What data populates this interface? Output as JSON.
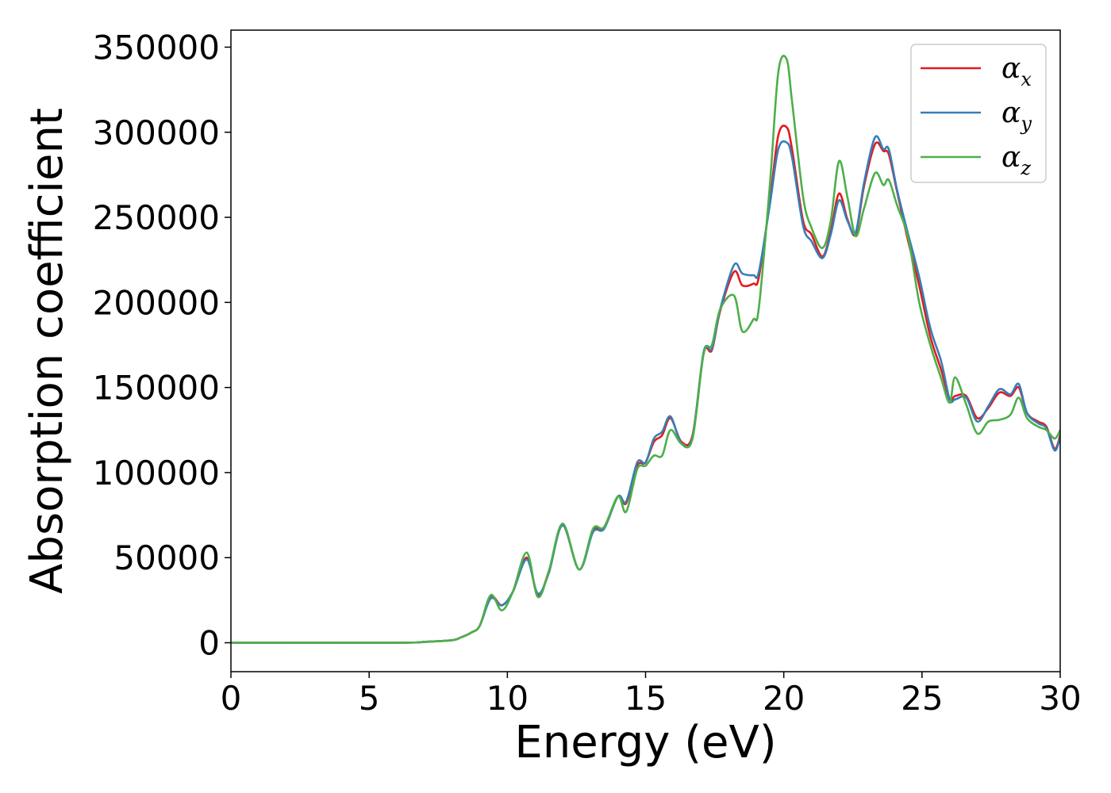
{
  "chart_data": {
    "type": "line",
    "title": "",
    "xlabel": "Energy (eV)",
    "ylabel": "Absorption coefficient",
    "xlim": [
      0,
      30
    ],
    "ylim": [
      -17000,
      360000
    ],
    "xticks": [
      "0",
      "5",
      "10",
      "15",
      "20",
      "25",
      "30"
    ],
    "yticks": [
      "0",
      "50000",
      "100000",
      "150000",
      "200000",
      "250000",
      "300000",
      "350000"
    ],
    "grid": false,
    "legend_position": "top-right",
    "x": [
      0,
      6,
      7,
      8,
      8.3,
      8.7,
      9.0,
      9.4,
      9.8,
      10.2,
      10.7,
      11.1,
      11.5,
      12.0,
      12.6,
      13.1,
      13.5,
      14.0,
      14.3,
      14.7,
      15.0,
      15.3,
      15.6,
      15.9,
      16.3,
      16.7,
      17.1,
      17.4,
      17.7,
      18.2,
      18.5,
      18.9,
      19.1,
      19.5,
      19.8,
      20.1,
      20.3,
      20.7,
      21.0,
      21.4,
      21.7,
      22.0,
      22.3,
      22.6,
      22.9,
      23.3,
      23.6,
      23.8,
      24.1,
      24.5,
      24.9,
      25.3,
      25.7,
      26.0,
      26.2,
      26.6,
      27.0,
      27.4,
      27.8,
      28.2,
      28.5,
      28.8,
      29.2,
      29.5,
      29.8,
      30.0
    ],
    "series": [
      {
        "name": "αx",
        "label_base": "α",
        "label_sub": "x",
        "color": "#e41a1c",
        "values": [
          0,
          0,
          500,
          1500,
          3000,
          6000,
          10000,
          27000,
          22000,
          30000,
          50000,
          28000,
          42000,
          69000,
          43000,
          66000,
          68000,
          86000,
          82000,
          104000,
          106000,
          118000,
          122000,
          132000,
          118000,
          122000,
          170000,
          172000,
          195000,
          218000,
          210000,
          211000,
          215000,
          260000,
          298000,
          303000,
          290000,
          248000,
          240000,
          227000,
          242000,
          264000,
          249000,
          240000,
          268000,
          293000,
          289000,
          287000,
          265000,
          236000,
          210000,
          180000,
          160000,
          143000,
          145000,
          145000,
          132000,
          138000,
          147000,
          145000,
          150000,
          135000,
          130000,
          127000,
          114000,
          122000
        ]
      },
      {
        "name": "αy",
        "label_base": "α",
        "label_sub": "y",
        "color": "#377eb8",
        "values": [
          0,
          0,
          500,
          1500,
          3000,
          6000,
          10000,
          26000,
          22000,
          30000,
          49000,
          29000,
          41000,
          69000,
          43000,
          65000,
          67000,
          86000,
          83000,
          106000,
          106000,
          120000,
          124000,
          133000,
          117000,
          121000,
          171000,
          173000,
          196000,
          222000,
          217000,
          216000,
          218000,
          258000,
          290000,
          294000,
          285000,
          245000,
          236000,
          226000,
          240000,
          260000,
          248000,
          241000,
          270000,
          297000,
          290000,
          290000,
          266000,
          240000,
          215000,
          185000,
          165000,
          143000,
          143000,
          144000,
          130000,
          139000,
          149000,
          146000,
          152000,
          135000,
          129000,
          126000,
          113000,
          121000
        ]
      },
      {
        "name": "αz",
        "label_base": "α",
        "label_sub": "z",
        "color": "#4daf4a",
        "values": [
          0,
          0,
          500,
          1500,
          3000,
          6000,
          10000,
          28000,
          19000,
          30000,
          53000,
          27000,
          42000,
          70000,
          43000,
          67000,
          68000,
          86000,
          77000,
          102000,
          104000,
          110000,
          110000,
          125000,
          117000,
          120000,
          170000,
          175000,
          196000,
          204000,
          183000,
          190000,
          197000,
          270000,
          335000,
          343000,
          318000,
          262000,
          244000,
          232000,
          248000,
          283000,
          262000,
          239000,
          255000,
          276000,
          269000,
          272000,
          257000,
          238000,
          200000,
          175000,
          155000,
          141000,
          156000,
          140000,
          123000,
          130000,
          131000,
          134000,
          144000,
          132000,
          127000,
          125000,
          120000,
          125000
        ]
      }
    ]
  }
}
